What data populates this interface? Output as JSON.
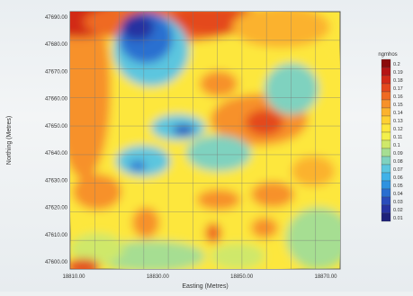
{
  "chart_data": {
    "type": "heatmap",
    "title": "",
    "xlabel": "Easting (Metres)",
    "ylabel": "Northing (Metres)",
    "x_ticks": [
      "18810.00",
      "18830.00",
      "18850.00",
      "18870.00"
    ],
    "y_ticks": [
      "47690.00",
      "47680.00",
      "47670.00",
      "47660.00",
      "47650.00",
      "47640.00",
      "47630.00",
      "47620.00",
      "47610.00",
      "47600.00"
    ],
    "colorbar": {
      "title": "ngmhos",
      "labels": [
        "0.2",
        "0.19",
        "0.18",
        "0.17",
        "0.16",
        "0.15",
        "0.14",
        "0.13",
        "0.12",
        "0.11",
        "0.1",
        "0.09",
        "0.08",
        "0.07",
        "0.06",
        "0.05",
        "0.04",
        "0.03",
        "0.02",
        "0.01"
      ],
      "colors": [
        "#8b0a0a",
        "#b51414",
        "#d22a18",
        "#e4481d",
        "#ef6a22",
        "#f7912a",
        "#fbb22e",
        "#fed033",
        "#fde73e",
        "#f3f04c",
        "#cfe86a",
        "#a6de92",
        "#7fd2bf",
        "#5cc6df",
        "#3fb2e8",
        "#2e92e0",
        "#2a6fd0",
        "#2a4cbb",
        "#2733a1",
        "#1e217a"
      ]
    },
    "grid": true,
    "grid_nx": 11,
    "grid_ny": 9
  }
}
